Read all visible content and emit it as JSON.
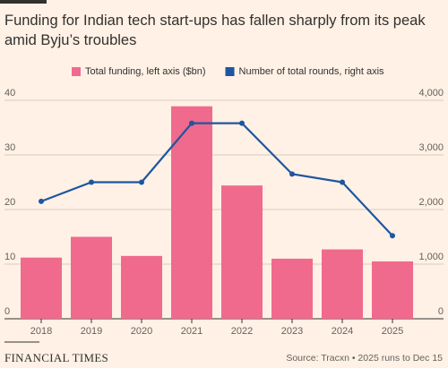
{
  "chart_data": {
    "type": "bar",
    "title": "Funding for Indian tech start-ups has fallen sharply from its peak amid Byju’s troubles",
    "source": "Source: Tracxn • 2025 runs to Dec 15",
    "brand": "FINANCIAL TIMES",
    "categories": [
      "2018",
      "2019",
      "2020",
      "2021",
      "2022",
      "2023",
      "2024",
      "2025"
    ],
    "series": [
      {
        "name": "Total funding, left axis ($bn)",
        "color": "#f06a8e",
        "type": "bar",
        "axis": "y",
        "values": [
          11.2,
          15.0,
          11.5,
          38.9,
          24.4,
          11.0,
          12.7,
          10.5
        ]
      },
      {
        "name": "Number of total rounds, right axis",
        "color": "#1e56a0",
        "type": "line",
        "axis": "y2",
        "values": [
          2150,
          2500,
          2500,
          3580,
          3580,
          2650,
          2500,
          1520
        ]
      }
    ],
    "ylim": [
      0,
      40
    ],
    "yticks": [
      0,
      10,
      20,
      30,
      40
    ],
    "y2lim": [
      0,
      4000
    ],
    "y2ticks": [
      0,
      {
        "value": 1000,
        "label": "1,000"
      },
      {
        "value": 2000,
        "label": "2,000"
      },
      {
        "value": 3000,
        "label": "3,000"
      },
      {
        "value": 4000,
        "label": "4,000"
      }
    ],
    "grid": true
  }
}
